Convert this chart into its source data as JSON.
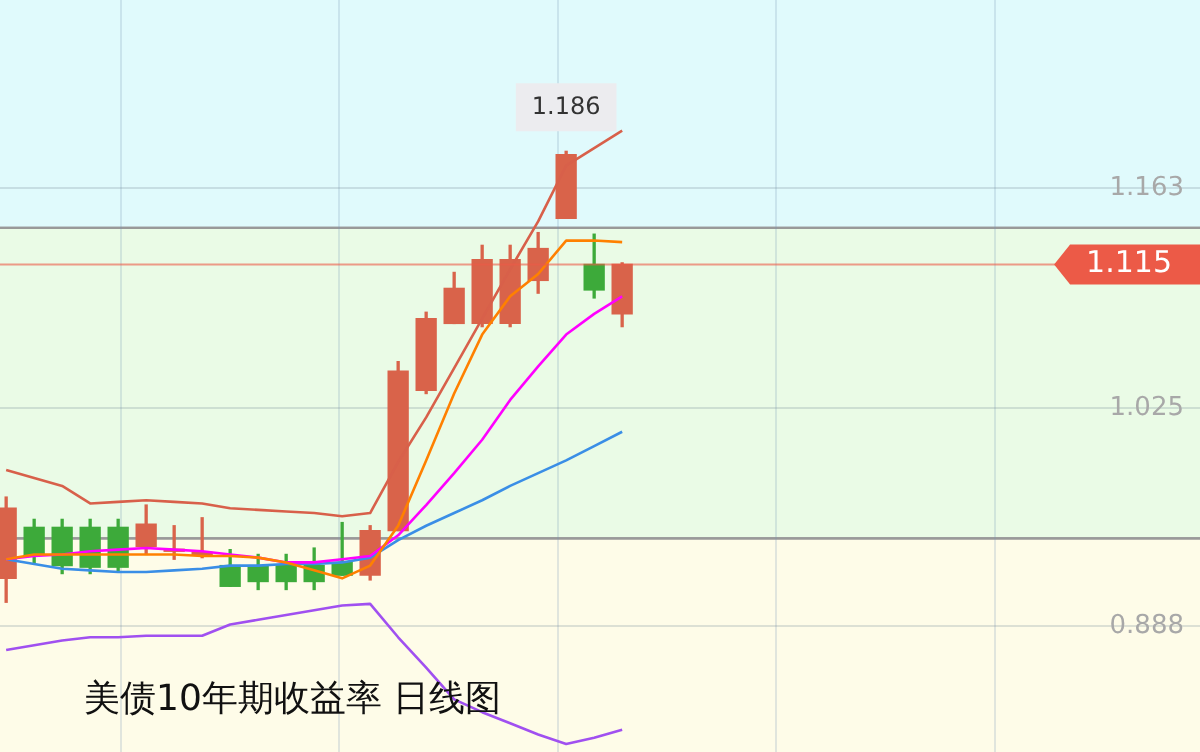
{
  "chart_data": {
    "type": "candlestick",
    "title": "美债10年期收益率 日线图",
    "categories": [
      null,
      null,
      null,
      null,
      null,
      null,
      null,
      null,
      null,
      null,
      null,
      null,
      null,
      null,
      null,
      null,
      null,
      null,
      null,
      null,
      null,
      null,
      null
    ],
    "ohlc": [
      [
        0.918,
        0.969,
        0.903,
        0.962
      ],
      [
        0.95,
        0.955,
        0.927,
        0.933
      ],
      [
        0.95,
        0.955,
        0.921,
        0.926
      ],
      [
        0.95,
        0.955,
        0.921,
        0.925
      ],
      [
        0.95,
        0.955,
        0.922,
        0.925
      ],
      [
        0.938,
        0.964,
        0.933,
        0.952
      ],
      [
        0.935,
        0.951,
        0.93,
        0.936
      ],
      [
        0.933,
        0.956,
        0.931,
        0.934
      ],
      [
        0.926,
        0.936,
        0.913,
        0.913
      ],
      [
        0.926,
        0.933,
        0.911,
        0.916
      ],
      [
        0.926,
        0.933,
        0.911,
        0.916
      ],
      [
        0.926,
        0.937,
        0.911,
        0.916
      ],
      [
        0.928,
        0.953,
        0.92,
        0.92
      ],
      [
        0.92,
        0.951,
        0.917,
        0.948
      ],
      [
        0.948,
        1.054,
        0.948,
        1.048
      ],
      [
        1.036,
        1.085,
        1.034,
        1.081
      ],
      [
        1.078,
        1.11,
        1.078,
        1.1
      ],
      [
        1.078,
        1.127,
        1.076,
        1.118
      ],
      [
        1.078,
        1.127,
        1.076,
        1.118
      ],
      [
        1.105,
        1.135,
        1.097,
        1.125
      ],
      [
        1.144,
        1.186,
        1.144,
        1.184
      ],
      [
        1.115,
        1.134,
        1.094,
        1.099
      ],
      [
        1.084,
        1.116,
        1.076,
        1.115
      ]
    ],
    "series": [
      {
        "type": "line",
        "color": "#d8604a",
        "values": [
          0.986,
          0.981,
          0.976,
          0.965,
          0.966,
          0.967,
          0.966,
          0.965,
          0.962,
          0.961,
          0.96,
          0.959,
          0.957,
          0.959,
          0.991,
          1.019,
          1.05,
          1.081,
          1.112,
          1.142,
          1.177,
          1.188,
          1.199
        ]
      },
      {
        "type": "line",
        "color": "#ff8000",
        "values": [
          0.93,
          0.933,
          0.933,
          0.933,
          0.933,
          0.933,
          0.933,
          0.932,
          0.932,
          0.931,
          0.928,
          0.923,
          0.918,
          0.926,
          0.951,
          0.992,
          1.034,
          1.071,
          1.095,
          1.109,
          1.13,
          1.13,
          1.129
        ]
      },
      {
        "type": "line",
        "color": "#ff00ff",
        "values": [
          0.93,
          0.932,
          0.933,
          0.935,
          0.936,
          0.937,
          0.936,
          0.935,
          0.933,
          0.931,
          0.928,
          0.928,
          0.93,
          0.932,
          0.945,
          0.964,
          0.984,
          1.005,
          1.03,
          1.051,
          1.071,
          1.084,
          1.095
        ]
      },
      {
        "type": "line",
        "color": "#3a8ee6",
        "values": [
          0.93,
          0.927,
          0.924,
          0.923,
          0.922,
          0.922,
          0.923,
          0.924,
          0.926,
          0.926,
          0.927,
          0.927,
          0.928,
          0.931,
          0.942,
          0.951,
          0.959,
          0.967,
          0.976,
          0.984,
          0.992,
          1.001,
          1.01
        ]
      },
      {
        "type": "line",
        "color": "#a050f0",
        "values": [
          0.873,
          0.876,
          0.879,
          0.881,
          0.881,
          0.882,
          0.882,
          0.882,
          0.889,
          0.892,
          0.895,
          0.898,
          0.901,
          0.902,
          0.881,
          0.862,
          0.842,
          0.834,
          0.827,
          0.82,
          0.814,
          0.818,
          0.823
        ]
      }
    ],
    "ylim": [
      0.809,
      1.281
    ],
    "yticks": [
      0.888,
      1.025,
      1.163
    ],
    "grid": true,
    "legend": false,
    "marker": "none",
    "bands": [
      {
        "axis": "y",
        "from": 1.138,
        "to": 1.281,
        "color": "#e0fafc"
      },
      {
        "axis": "y",
        "from": 0.943,
        "to": 1.138,
        "color": "#eafbe6"
      },
      {
        "axis": "y",
        "from": 0.809,
        "to": 0.943,
        "color": "#fefce8"
      }
    ],
    "ref_lines": [
      {
        "axis": "y",
        "value": 1.115,
        "label": "1.115",
        "color": "#ec5a47"
      }
    ],
    "annotations": [
      {
        "text": "1.186",
        "y": 1.186
      }
    ]
  }
}
